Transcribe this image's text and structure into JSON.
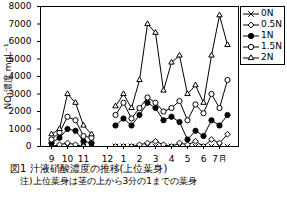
{
  "chart_data": {
    "type": "line",
    "title": "図1 汁液硝酸濃度の推移(上位葉身)",
    "annotations": [
      "注)上位葉身は茎の上から3分の1までの葉身"
    ],
    "y_label": "NO₃濃度 mgL⁻¹",
    "categories": [
      "9",
      null,
      "10",
      null,
      "11",
      null,
      null,
      "12",
      null,
      "1",
      null,
      "2",
      null,
      "3",
      null,
      "4",
      null,
      "5",
      null,
      "6",
      null,
      "7月",
      null
    ],
    "ylim": [
      0,
      8000
    ],
    "yticks": [
      0,
      1000,
      2000,
      3000,
      4000,
      5000,
      6000,
      7000,
      8000
    ],
    "legend": "right",
    "grid": false,
    "series": [
      {
        "name": "0N",
        "color": "#000000",
        "marker": "x",
        "values": [
          0,
          0,
          0,
          0,
          0,
          0,
          null,
          null,
          0,
          0,
          0,
          0,
          0,
          0,
          0,
          0,
          0,
          0,
          0,
          0,
          0,
          0,
          0
        ]
      },
      {
        "name": "0.5N",
        "color": "#000000",
        "marker": "diamond-open",
        "values": [
          0,
          100,
          200,
          100,
          0,
          0,
          null,
          null,
          0,
          0,
          0,
          100,
          200,
          300,
          100,
          0,
          200,
          100,
          300,
          0,
          400,
          200,
          700
        ]
      },
      {
        "name": "1N",
        "color": "#000000",
        "marker": "circle",
        "values": [
          200,
          500,
          1000,
          900,
          300,
          200,
          null,
          null,
          1200,
          1600,
          1200,
          1800,
          2500,
          2200,
          1500,
          1700,
          1400,
          400,
          900,
          600,
          1500,
          1200,
          1800
        ]
      },
      {
        "name": "1.5N",
        "color": "#000000",
        "marker": "circle-open",
        "values": [
          400,
          800,
          1700,
          1500,
          600,
          500,
          null,
          null,
          1800,
          2500,
          1600,
          2200,
          2800,
          2500,
          2000,
          2200,
          2600,
          1500,
          2400,
          1900,
          3000,
          2200,
          3800
        ]
      },
      {
        "name": "2N",
        "color": "#000000",
        "marker": "triangle-open",
        "values": [
          700,
          1000,
          3000,
          2500,
          1200,
          700,
          null,
          null,
          2300,
          3000,
          2200,
          3800,
          7000,
          6500,
          3200,
          4800,
          5200,
          3000,
          3500,
          2500,
          5200,
          7500,
          5800
        ]
      }
    ]
  }
}
